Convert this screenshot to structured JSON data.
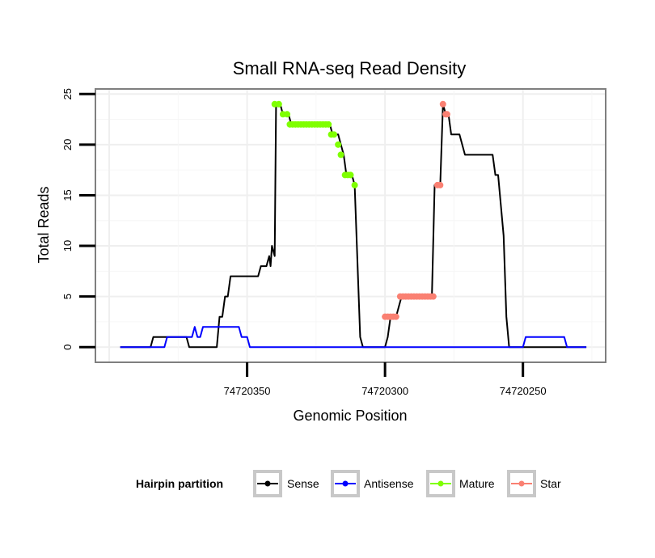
{
  "chart_data": {
    "type": "line",
    "title": "Small RNA-seq Read Density",
    "xlabel": "Genomic Position",
    "ylabel": "Total Reads",
    "xlim": [
      74720405,
      74720220
    ],
    "ylim": [
      -1.5,
      25.5
    ],
    "x_reversed": true,
    "xticks": [
      74720350,
      74720300,
      74720250
    ],
    "xtick_labels": [
      "74720350",
      "74720300",
      "74720250"
    ],
    "yticks": [
      0,
      5,
      10,
      15,
      20,
      25
    ],
    "ytick_labels": [
      "0",
      "5",
      "10",
      "15",
      "20",
      "25"
    ],
    "grid": true,
    "legend": {
      "title": "Hairpin partition",
      "position": "bottom",
      "entries": [
        "Sense",
        "Antisense",
        "Mature",
        "Star"
      ]
    },
    "colors": {
      "Sense": "#000000",
      "Antisense": "#0000ff",
      "Mature": "#7fff00",
      "Star": "#fa8072"
    },
    "series": [
      {
        "name": "Sense",
        "points": [
          [
            74720396,
            0
          ],
          [
            74720385,
            0
          ],
          [
            74720384,
            1
          ],
          [
            74720375,
            1
          ],
          [
            74720372,
            1
          ],
          [
            74720371,
            0
          ],
          [
            74720361,
            0
          ],
          [
            74720360,
            3
          ],
          [
            74720359,
            3
          ],
          [
            74720358,
            5
          ],
          [
            74720357,
            5
          ],
          [
            74720356,
            7
          ],
          [
            74720346,
            7
          ],
          [
            74720345,
            8
          ],
          [
            74720343,
            8
          ],
          [
            74720342,
            9
          ],
          [
            74720341.5,
            8
          ],
          [
            74720341,
            10
          ],
          [
            74720340,
            9
          ],
          [
            74720339.5,
            24
          ],
          [
            74720339,
            24
          ],
          [
            74720338,
            24
          ],
          [
            74720337,
            23
          ],
          [
            74720335,
            23
          ],
          [
            74720334,
            22
          ],
          [
            74720320,
            22
          ],
          [
            74720319,
            21
          ],
          [
            74720317,
            21
          ],
          [
            74720316,
            20
          ],
          [
            74720315,
            19
          ],
          [
            74720314,
            17
          ],
          [
            74720312,
            17
          ],
          [
            74720311,
            16
          ],
          [
            74720309,
            1
          ],
          [
            74720308,
            0
          ],
          [
            74720300,
            0
          ],
          [
            74720299,
            1
          ],
          [
            74720298,
            3
          ],
          [
            74720296,
            3
          ],
          [
            74720294,
            5
          ],
          [
            74720283,
            5
          ],
          [
            74720282,
            16
          ],
          [
            74720280,
            16
          ],
          [
            74720279,
            24
          ],
          [
            74720278,
            23
          ],
          [
            74720277,
            23
          ],
          [
            74720276,
            21
          ],
          [
            74720273,
            21
          ],
          [
            74720271,
            19
          ],
          [
            74720261,
            19
          ],
          [
            74720260,
            17
          ],
          [
            74720259,
            17
          ],
          [
            74720257,
            11
          ],
          [
            74720256,
            3
          ],
          [
            74720255,
            0
          ],
          [
            74720227,
            0
          ]
        ]
      },
      {
        "name": "Antisense",
        "points": [
          [
            74720396,
            0
          ],
          [
            74720380,
            0
          ],
          [
            74720379,
            1
          ],
          [
            74720371,
            1
          ],
          [
            74720370,
            1
          ],
          [
            74720369,
            2
          ],
          [
            74720368,
            1
          ],
          [
            74720367,
            1
          ],
          [
            74720366,
            2
          ],
          [
            74720353,
            2
          ],
          [
            74720352,
            1
          ],
          [
            74720350,
            1
          ],
          [
            74720349,
            0
          ],
          [
            74720250,
            0
          ],
          [
            74720249,
            1
          ],
          [
            74720235,
            1
          ],
          [
            74720234,
            0
          ],
          [
            74720227,
            0
          ]
        ]
      },
      {
        "name": "Mature",
        "points": [
          [
            74720340,
            24
          ],
          [
            74720338.5,
            24
          ],
          [
            74720337,
            23
          ],
          [
            74720335.5,
            23
          ],
          [
            74720334.5,
            22
          ],
          [
            74720333.5,
            22
          ],
          [
            74720332.5,
            22
          ],
          [
            74720331.5,
            22
          ],
          [
            74720330.5,
            22
          ],
          [
            74720329.5,
            22
          ],
          [
            74720328.5,
            22
          ],
          [
            74720327.5,
            22
          ],
          [
            74720326.5,
            22
          ],
          [
            74720325.5,
            22
          ],
          [
            74720324.5,
            22
          ],
          [
            74720323.5,
            22
          ],
          [
            74720322.5,
            22
          ],
          [
            74720321.5,
            22
          ],
          [
            74720320.5,
            22
          ],
          [
            74720319.5,
            21
          ],
          [
            74720318.5,
            21
          ],
          [
            74720317,
            20
          ],
          [
            74720316,
            19
          ],
          [
            74720314.5,
            17
          ],
          [
            74720313.5,
            17
          ],
          [
            74720312.5,
            17
          ],
          [
            74720311,
            16
          ]
        ]
      },
      {
        "name": "Star",
        "points": [
          [
            74720300,
            3
          ],
          [
            74720299,
            3
          ],
          [
            74720298,
            3
          ],
          [
            74720297,
            3
          ],
          [
            74720296,
            3
          ],
          [
            74720294.5,
            5
          ],
          [
            74720293.5,
            5
          ],
          [
            74720292.5,
            5
          ],
          [
            74720291.5,
            5
          ],
          [
            74720290.5,
            5
          ],
          [
            74720289.5,
            5
          ],
          [
            74720288.5,
            5
          ],
          [
            74720287.5,
            5
          ],
          [
            74720286.5,
            5
          ],
          [
            74720285.5,
            5
          ],
          [
            74720284.5,
            5
          ],
          [
            74720283.5,
            5
          ],
          [
            74720282.5,
            5
          ],
          [
            74720281,
            16
          ],
          [
            74720280,
            16
          ],
          [
            74720279,
            24
          ],
          [
            74720278,
            23
          ],
          [
            74720277.5,
            23
          ]
        ]
      }
    ]
  }
}
